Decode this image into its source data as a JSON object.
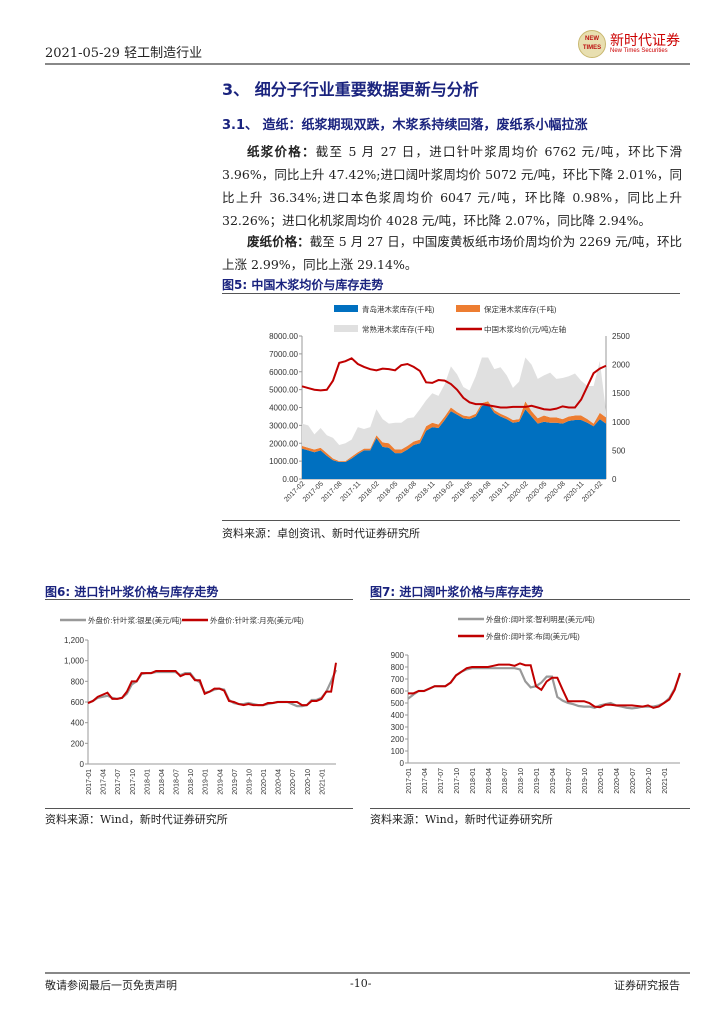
{
  "header": {
    "date_industry": "2021-05-29 轻工制造行业",
    "logo_cn": "新时代证券",
    "logo_en": "New Times Securities",
    "logo_mark": "NEW TIMES"
  },
  "section": {
    "title": "3、 细分子行业重要数据更新与分析",
    "subtitle": "3.1、 造纸：纸浆期现双跌，木浆系持续回落，废纸系小幅拉涨"
  },
  "paragraphs": [
    {
      "label": "纸浆价格：",
      "text": "截至 5 月 27 日，进口针叶浆周均价 6762 元/吨，环比下滑 3.96%，同比上升 47.42%;进口阔叶浆周均价 5072 元/吨，环比下降 2.01%，同比上升 36.34%;进口本色浆周均价 6047 元/吨，环比降 0.98%，同比上升 32.26%；进口化机浆周均价 4028 元/吨，环比降 2.07%，同比降 2.94%。"
    },
    {
      "label": "废纸价格：",
      "text": "截至 5 月 27 日，中国废黄板纸市场价周均价为 2269 元/吨，环比上涨 2.99%，同比上涨 29.14%。"
    }
  ],
  "figures": [
    {
      "title": "图5:   中国木浆均价与库存走势",
      "source": "资料来源：卓创资讯、新时代证券研究所"
    },
    {
      "title": "图6:   进口针叶浆价格与库存走势",
      "source": "资料来源：Wind，新时代证券研究所"
    },
    {
      "title": "图7:   进口阔叶浆价格与库存走势",
      "source": "资料来源：Wind，新时代证券研究所"
    }
  ],
  "chart_data": [
    {
      "type": "area",
      "stacked": true,
      "ylim": [
        0,
        8000
      ],
      "y2lim": [
        0,
        2500
      ],
      "yticks": [
        "0.00",
        "1000.00",
        "2000.00",
        "3000.00",
        "4000.00",
        "5000.00",
        "6000.00",
        "7000.00",
        "8000.00"
      ],
      "y2ticks": [
        "0",
        "500",
        "1000",
        "1500",
        "2000",
        "2500"
      ],
      "xticks": [
        "2017-02",
        "2017-05",
        "2017-08",
        "2017-11",
        "2018-02",
        "2018-05",
        "2018-08",
        "2018-11",
        "2019-02",
        "2019-05",
        "2019-08",
        "2019-11",
        "2020-02",
        "2020-05",
        "2020-08",
        "2020-11",
        "2021-02"
      ],
      "series": [
        {
          "name": "青岛港木浆库存(千吨)",
          "kind": "area",
          "color": "#0070c0",
          "values": [
            1700,
            1600,
            1500,
            1600,
            1300,
            1050,
            950,
            950,
            1150,
            1400,
            1600,
            1600,
            2300,
            1800,
            1750,
            1450,
            1450,
            1650,
            1900,
            2000,
            2700,
            2900,
            2850,
            3300,
            3800,
            3600,
            3400,
            3350,
            3500,
            4100,
            4200,
            3700,
            3500,
            3350,
            3150,
            3200,
            3900,
            3500,
            3100,
            3200,
            3150,
            3150,
            3100,
            3250,
            3300,
            3300,
            3150,
            2950,
            3350,
            3100
          ]
        },
        {
          "name": "保定港木浆库存(千吨)",
          "kind": "area",
          "color": "#ed7d31",
          "values": [
            150,
            150,
            150,
            150,
            150,
            100,
            50,
            50,
            100,
            100,
            100,
            100,
            150,
            250,
            250,
            200,
            200,
            200,
            200,
            200,
            250,
            250,
            200,
            200,
            200,
            150,
            150,
            150,
            150,
            150,
            150,
            150,
            150,
            150,
            150,
            150,
            450,
            300,
            300,
            350,
            300,
            300,
            250,
            250,
            250,
            250,
            200,
            150,
            350,
            350
          ]
        },
        {
          "name": "常熟港木浆库存(千吨)",
          "kind": "area",
          "color": "#e0e0e0",
          "values": [
            1250,
            1250,
            850,
            1100,
            1000,
            1150,
            900,
            1000,
            950,
            1400,
            1100,
            1200,
            1450,
            1300,
            1100,
            1500,
            1500,
            1550,
            1350,
            1700,
            1450,
            1650,
            1600,
            1800,
            2300,
            2100,
            1600,
            1450,
            2100,
            2550,
            2450,
            2300,
            2600,
            2300,
            1800,
            2100,
            2450,
            2600,
            2200,
            2250,
            2500,
            2150,
            2300,
            2250,
            2350,
            1950,
            1850,
            2100,
            2900,
            350
          ]
        },
        {
          "name": "中国木浆均价(元/吨)左轴",
          "kind": "line",
          "axis": "right",
          "color": "#c00000",
          "values": [
            1620,
            1590,
            1560,
            1550,
            1560,
            1720,
            2030,
            2060,
            2110,
            2010,
            1960,
            1920,
            1900,
            1930,
            1920,
            1900,
            1990,
            2010,
            1960,
            1890,
            1690,
            1680,
            1730,
            1720,
            1660,
            1560,
            1420,
            1340,
            1310,
            1310,
            1290,
            1270,
            1250,
            1250,
            1260,
            1260,
            1260,
            1280,
            1250,
            1220,
            1210,
            1230,
            1270,
            1250,
            1250,
            1390,
            1620,
            1850,
            1930,
            1980
          ]
        }
      ]
    },
    {
      "type": "line",
      "ylim": [
        0,
        1200
      ],
      "yticks": [
        "0",
        "200",
        "400",
        "600",
        "800",
        "1,000",
        "1,200"
      ],
      "xticks": [
        "2017-01",
        "2017-04",
        "2017-07",
        "2017-10",
        "2018-01",
        "2018-04",
        "2018-07",
        "2018-10",
        "2019-01",
        "2019-04",
        "2019-07",
        "2019-10",
        "2020-01",
        "2020-04",
        "2020-07",
        "2020-10",
        "2021-01"
      ],
      "series": [
        {
          "name": "外盘价:针叶浆:银星(美元/吨)",
          "color": "#999999",
          "values": [
            590,
            610,
            640,
            650,
            660,
            640,
            630,
            640,
            680,
            770,
            800,
            870,
            880,
            880,
            890,
            890,
            890,
            890,
            890,
            860,
            880,
            880,
            820,
            790,
            690,
            700,
            720,
            730,
            720,
            620,
            590,
            580,
            580,
            590,
            580,
            570,
            570,
            580,
            590,
            600,
            600,
            600,
            580,
            560,
            560,
            570,
            620,
            620,
            640,
            700,
            800,
            910
          ]
        },
        {
          "name": "外盘价:针叶浆:月亮(美元/吨)",
          "color": "#c00000",
          "values": [
            590,
            610,
            650,
            670,
            690,
            630,
            630,
            640,
            700,
            800,
            800,
            880,
            880,
            880,
            900,
            900,
            900,
            900,
            900,
            850,
            870,
            870,
            810,
            810,
            680,
            700,
            730,
            730,
            710,
            610,
            600,
            580,
            570,
            580,
            570,
            570,
            570,
            590,
            590,
            600,
            600,
            600,
            600,
            600,
            570,
            570,
            610,
            610,
            630,
            700,
            700,
            980
          ]
        }
      ]
    },
    {
      "type": "line",
      "ylim": [
        0,
        900
      ],
      "yticks": [
        "0",
        "100",
        "200",
        "300",
        "400",
        "500",
        "600",
        "700",
        "800",
        "900"
      ],
      "xticks": [
        "2017-01",
        "2017-04",
        "2017-07",
        "2017-10",
        "2018-01",
        "2018-04",
        "2018-07",
        "2018-10",
        "2019-01",
        "2019-04",
        "2019-07",
        "2019-10",
        "2020-01",
        "2020-04",
        "2020-07",
        "2020-10",
        "2021-01"
      ],
      "series": [
        {
          "name": "外盘价:阔叶浆:智利明星(美元/吨)",
          "color": "#999999",
          "values": [
            535,
            570,
            600,
            600,
            620,
            640,
            640,
            640,
            670,
            730,
            760,
            780,
            790,
            790,
            790,
            790,
            790,
            790,
            790,
            790,
            790,
            780,
            680,
            630,
            640,
            670,
            720,
            720,
            550,
            520,
            500,
            490,
            475,
            470,
            470,
            460,
            480,
            490,
            500,
            480,
            470,
            460,
            455,
            460,
            470,
            470,
            470,
            480,
            500,
            540,
            620,
            740
          ]
        },
        {
          "name": "外盘价:阔叶浆:布阔(美元/吨)",
          "color": "#c00000",
          "values": [
            580,
            580,
            600,
            600,
            620,
            640,
            640,
            640,
            670,
            730,
            760,
            790,
            800,
            800,
            800,
            800,
            810,
            820,
            820,
            820,
            810,
            830,
            815,
            815,
            640,
            610,
            680,
            710,
            710,
            610,
            515,
            515,
            515,
            515,
            500,
            470,
            465,
            485,
            485,
            480,
            480,
            480,
            480,
            475,
            470,
            480,
            460,
            470,
            500,
            530,
            610,
            750
          ]
        }
      ]
    }
  ],
  "footer": {
    "disclaimer": "敬请参阅最后一页免责声明",
    "page": "-10-",
    "type": "证券研究报告"
  }
}
